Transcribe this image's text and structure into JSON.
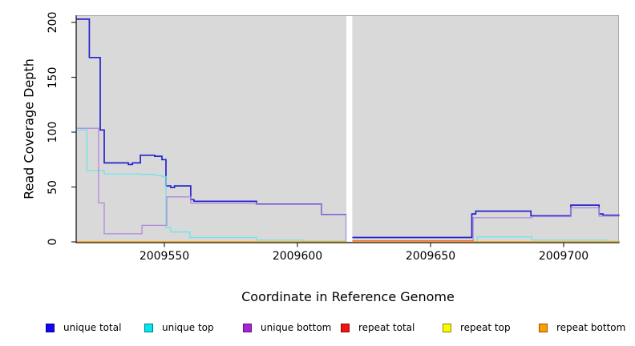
{
  "chart_data": {
    "type": "line",
    "style": "step",
    "title": "",
    "xlabel": "Coordinate in Reference Genome",
    "ylabel": "Read Coverage Depth",
    "xlim": [
      2009517,
      2009721
    ],
    "ylim": [
      0,
      207
    ],
    "x_ticks": [
      2009550,
      2009600,
      2009650,
      2009700
    ],
    "y_ticks": [
      0,
      50,
      100,
      150,
      200
    ],
    "grid": false,
    "panel_background": "#d9d9d9",
    "gap_region": [
      2009618.4,
      2009620.6
    ],
    "legend_position": "bottom",
    "series": [
      {
        "name": "unique total",
        "legend_color": "#1006f0",
        "line_color": "#2323cf",
        "line_width": 1.7,
        "segments": [
          {
            "points": [
              [
                2009517,
                203
              ],
              [
                2009521.8,
                168
              ],
              [
                2009525.9,
                102
              ],
              [
                2009527.4,
                72
              ],
              [
                2009536.5,
                70.5
              ],
              [
                2009538,
                72
              ],
              [
                2009541,
                79
              ],
              [
                2009546.4,
                78
              ],
              [
                2009549.1,
                75
              ],
              [
                2009550.6,
                51
              ],
              [
                2009552.4,
                49.5
              ],
              [
                2009553.8,
                51
              ],
              [
                2009559.9,
                38.5
              ],
              [
                2009561.1,
                37
              ],
              [
                2009584.6,
                34.3
              ],
              [
                2009609,
                25
              ],
              [
                2009618.4,
                0
              ]
            ],
            "end": 2009618.4
          },
          {
            "points": [
              [
                2009620.6,
                4
              ],
              [
                2009665.5,
                25.5
              ],
              [
                2009667,
                28
              ],
              [
                2009687.7,
                23.7
              ],
              [
                2009702.7,
                33.5
              ],
              [
                2009713.3,
                25.5
              ],
              [
                2009714.8,
                24.3
              ]
            ],
            "end": 2009721
          }
        ]
      },
      {
        "name": "unique top",
        "legend_color": "#00e8ee",
        "line_color": "#6ae6e9",
        "line_width": 1.3,
        "segments": [
          {
            "points": [
              [
                2009517,
                102
              ],
              [
                2009520.9,
                65
              ],
              [
                2009527.4,
                62
              ],
              [
                2009541,
                61.5
              ],
              [
                2009546.4,
                60.5
              ],
              [
                2009549.1,
                59.5
              ],
              [
                2009550.6,
                13
              ],
              [
                2009552.4,
                9
              ],
              [
                2009559.6,
                4
              ],
              [
                2009584.6,
                1.5
              ],
              [
                2009602.1,
                0.7
              ]
            ],
            "end": 2009618.4
          },
          {
            "points": [
              [
                2009620.6,
                0.2
              ],
              [
                2009667.5,
                4.5
              ],
              [
                2009688,
                1.5
              ],
              [
                2009716.3,
                0.5
              ]
            ],
            "end": 2009721
          }
        ]
      },
      {
        "name": "unique bottom",
        "legend_color": "#a822d8",
        "line_color": "#b287da",
        "line_width": 1.3,
        "segments": [
          {
            "points": [
              [
                2009517,
                103.5
              ],
              [
                2009525.3,
                35.5
              ],
              [
                2009527.4,
                7.4
              ],
              [
                2009541.6,
                15
              ],
              [
                2009550.9,
                41
              ],
              [
                2009559.9,
                35.3
              ],
              [
                2009584.6,
                34
              ],
              [
                2009609,
                24.8
              ],
              [
                2009618.4,
                0
              ]
            ],
            "end": 2009618.4
          },
          {
            "points": [
              [
                2009620.6,
                0.5
              ],
              [
                2009666,
                22
              ],
              [
                2009688,
                23
              ],
              [
                2009702.7,
                31
              ],
              [
                2009713.3,
                23.5
              ]
            ],
            "end": 2009721
          }
        ]
      },
      {
        "name": "repeat total",
        "legend_color": "#f31111",
        "line_color": "#e04455",
        "line_width": 1.3,
        "segments": [
          {
            "points": [
              [
                2009517,
                0
              ]
            ],
            "end": 2009618.4
          },
          {
            "points": [
              [
                2009620.6,
                0.8
              ],
              [
                2009666,
                0
              ]
            ],
            "end": 2009721
          }
        ]
      },
      {
        "name": "repeat top",
        "legend_color": "#fbfb00",
        "line_color": "#f5f500",
        "line_width": 1.3,
        "segments": [
          {
            "points": [
              [
                2009517,
                0
              ]
            ],
            "end": 2009618.4
          },
          {
            "points": [
              [
                2009620.6,
                0
              ]
            ],
            "end": 2009721
          }
        ]
      },
      {
        "name": "repeat bottom",
        "legend_color": "#ff9d00",
        "line_color": "#ff9f0a",
        "line_width": 1.4,
        "segments": [
          {
            "points": [
              [
                2009517,
                0
              ]
            ],
            "end": 2009618.4
          },
          {
            "points": [
              [
                2009620.6,
                0
              ]
            ],
            "end": 2009721
          }
        ]
      }
    ]
  }
}
